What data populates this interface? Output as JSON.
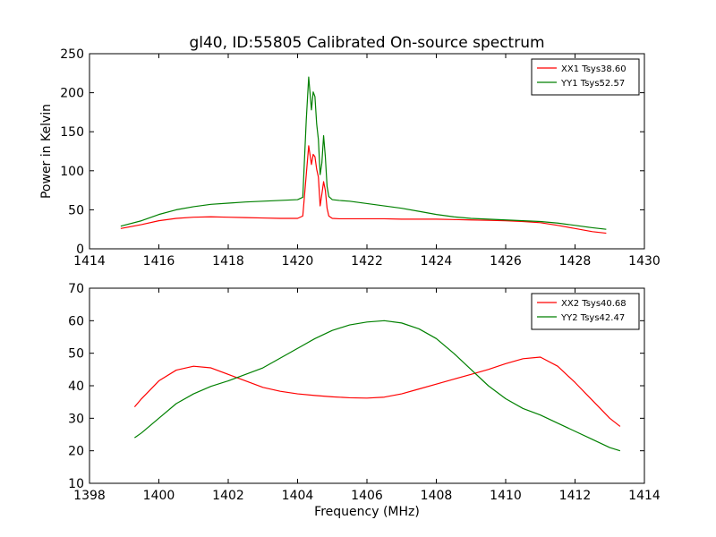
{
  "title": "gl40, ID:55805 Calibrated On-source spectrum",
  "colors": {
    "xx": "#ff0000",
    "yy": "#008000"
  },
  "chart_data": [
    {
      "type": "line",
      "title": "gl40, ID:55805 Calibrated On-source spectrum",
      "xlabel": "",
      "ylabel": "Power in Kelvin",
      "xlim": [
        1414,
        1430
      ],
      "ylim": [
        0,
        250
      ],
      "xticks": [
        "1414",
        "1416",
        "1418",
        "1420",
        "1422",
        "1424",
        "1426",
        "1428",
        "1430"
      ],
      "yticks": [
        "0",
        "50",
        "100",
        "150",
        "200",
        "250"
      ],
      "grid": false,
      "legend_position": "top-right",
      "series": [
        {
          "name": "XX1 Tsys38.60",
          "color": "#ff0000",
          "x": [
            1414.9,
            1415.5,
            1416.0,
            1416.5,
            1417.0,
            1417.5,
            1418.0,
            1418.5,
            1419.0,
            1419.5,
            1420.0,
            1420.15,
            1420.25,
            1420.32,
            1420.4,
            1420.45,
            1420.5,
            1420.55,
            1420.6,
            1420.65,
            1420.7,
            1420.75,
            1420.8,
            1420.85,
            1420.9,
            1421.0,
            1421.2,
            1421.5,
            1422.0,
            1422.5,
            1423.0,
            1423.5,
            1424.0,
            1424.5,
            1425.0,
            1425.5,
            1426.0,
            1426.5,
            1427.0,
            1427.5,
            1428.0,
            1428.5,
            1428.9
          ],
          "y": [
            26,
            31,
            36,
            39,
            40.5,
            41,
            40.5,
            40,
            39.5,
            39,
            39,
            42,
            95,
            132,
            108,
            121,
            118,
            102,
            92,
            55,
            70,
            86,
            75,
            52,
            42,
            39,
            38.5,
            38.5,
            38.5,
            38.5,
            38,
            38,
            38,
            37.5,
            37,
            36.5,
            36,
            35,
            33.5,
            30,
            26,
            22,
            20
          ]
        },
        {
          "name": "YY1 Tsys52.57",
          "color": "#008000",
          "x": [
            1414.9,
            1415.5,
            1416.0,
            1416.5,
            1417.0,
            1417.5,
            1418.0,
            1418.5,
            1419.0,
            1419.5,
            1420.0,
            1420.15,
            1420.25,
            1420.32,
            1420.4,
            1420.45,
            1420.5,
            1420.55,
            1420.6,
            1420.65,
            1420.7,
            1420.75,
            1420.8,
            1420.85,
            1420.9,
            1421.0,
            1421.2,
            1421.5,
            1422.0,
            1422.5,
            1423.0,
            1423.5,
            1424.0,
            1424.5,
            1425.0,
            1425.5,
            1426.0,
            1426.5,
            1427.0,
            1427.5,
            1428.0,
            1428.5,
            1428.9
          ],
          "y": [
            29,
            36,
            44,
            50,
            54,
            57,
            58.5,
            60,
            61,
            62,
            63,
            66,
            165,
            220,
            178,
            201,
            195,
            160,
            140,
            95,
            110,
            145,
            118,
            80,
            67,
            63,
            62,
            61,
            58,
            55,
            52,
            48,
            44,
            41,
            39,
            38,
            37,
            36,
            35,
            33,
            30,
            27,
            25
          ]
        }
      ]
    },
    {
      "type": "line",
      "title": "",
      "xlabel": "Frequency (MHz)",
      "ylabel": "",
      "xlim": [
        1398,
        1414
      ],
      "ylim": [
        10,
        70
      ],
      "xticks": [
        "1398",
        "1400",
        "1402",
        "1404",
        "1406",
        "1408",
        "1410",
        "1412",
        "1414"
      ],
      "yticks": [
        "10",
        "20",
        "30",
        "40",
        "50",
        "60",
        "70"
      ],
      "grid": false,
      "legend_position": "top-right",
      "series": [
        {
          "name": "XX2 Tsys40.68",
          "color": "#ff0000",
          "x": [
            1399.3,
            1399.5,
            1400.0,
            1400.5,
            1401.0,
            1401.5,
            1402.0,
            1402.5,
            1403.0,
            1403.5,
            1404.0,
            1404.5,
            1405.0,
            1405.5,
            1406.0,
            1406.5,
            1407.0,
            1407.5,
            1408.0,
            1408.5,
            1409.0,
            1409.5,
            1410.0,
            1410.5,
            1411.0,
            1411.5,
            1412.0,
            1412.5,
            1413.0,
            1413.3
          ],
          "y": [
            33.5,
            36,
            41.5,
            44.8,
            46,
            45.5,
            43.5,
            41.5,
            39.5,
            38.3,
            37.5,
            37,
            36.6,
            36.3,
            36.2,
            36.5,
            37.5,
            39,
            40.5,
            42,
            43.5,
            45,
            46.8,
            48.3,
            48.8,
            46,
            41,
            35.5,
            30,
            27.5
          ]
        },
        {
          "name": "YY2 Tsys42.47",
          "color": "#008000",
          "x": [
            1399.3,
            1399.5,
            1400.0,
            1400.5,
            1401.0,
            1401.5,
            1402.0,
            1402.5,
            1403.0,
            1403.5,
            1404.0,
            1404.5,
            1405.0,
            1405.5,
            1406.0,
            1406.5,
            1407.0,
            1407.5,
            1408.0,
            1408.5,
            1409.0,
            1409.5,
            1410.0,
            1410.5,
            1411.0,
            1411.5,
            1412.0,
            1412.5,
            1413.0,
            1413.3
          ],
          "y": [
            24,
            25.5,
            30,
            34.5,
            37.5,
            39.8,
            41.5,
            43.5,
            45.5,
            48.5,
            51.5,
            54.5,
            57,
            58.7,
            59.6,
            60,
            59.3,
            57.5,
            54.5,
            50,
            45,
            40,
            36,
            33,
            31,
            28.5,
            26,
            23.5,
            21,
            20
          ]
        }
      ]
    }
  ]
}
